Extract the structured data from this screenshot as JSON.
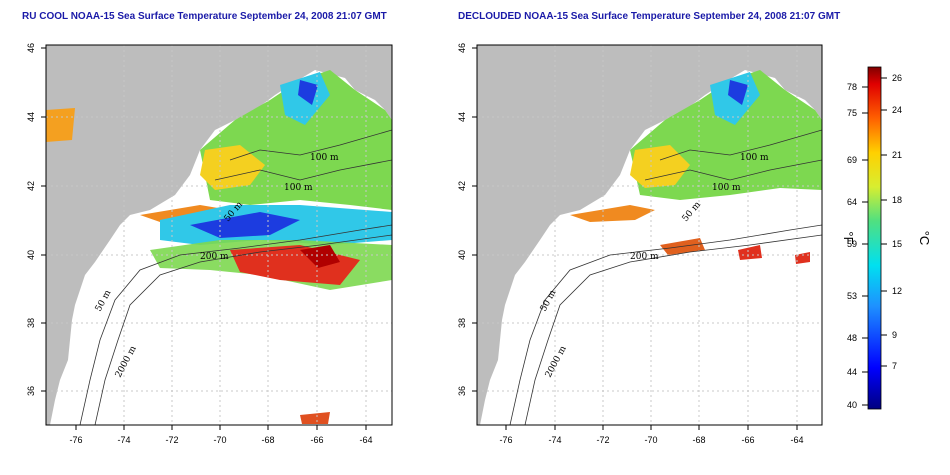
{
  "titles": {
    "left": "RU COOL NOAA-15 Sea Surface Temperature September 24, 2008 21:07 GMT",
    "right": "DECLOUDED NOAA-15 Sea Surface Temperature September 24, 2008 21:07 GMT"
  },
  "axes": {
    "x_ticks": [
      "-76",
      "-74",
      "-72",
      "-70",
      "-68",
      "-66",
      "-64"
    ],
    "y_ticks": [
      "46",
      "44",
      "42",
      "40",
      "38",
      "36"
    ]
  },
  "contours": {
    "c100": "100 m",
    "c50": "50 m",
    "c200": "200 m",
    "c2000": "2000 m"
  },
  "colorbar": {
    "fahrenheit_label": "°F",
    "celsius_label": "°C",
    "fahrenheit_ticks": [
      "78",
      "75",
      "69",
      "64",
      "59",
      "53",
      "48",
      "44",
      "40"
    ],
    "celsius_ticks": [
      "26",
      "24",
      "21",
      "18",
      "15",
      "12",
      "9",
      "7"
    ]
  },
  "colors": {
    "land": "#bdbdbd",
    "warm": "#e0301e",
    "mid": "#f4d020",
    "green": "#7dd850",
    "cyan": "#30c8e8",
    "blue": "#1c3ce0"
  }
}
